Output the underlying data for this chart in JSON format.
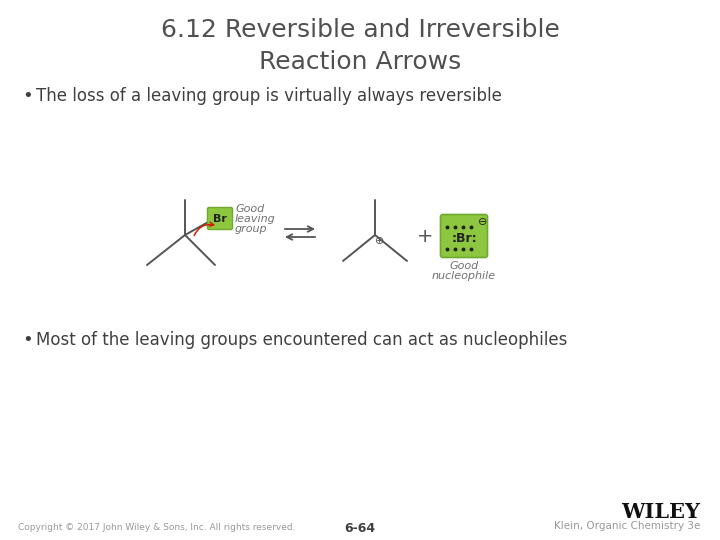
{
  "title_line1": "6.12 Reversible and Irreversible",
  "title_line2": "Reaction Arrows",
  "bullet1": "The loss of a leaving group is virtually always reversible",
  "bullet2": "Most of the leaving groups encountered can act as nucleophiles",
  "footer_left": "Copyright © 2017 John Wiley & Sons, Inc. All rights reserved.",
  "footer_center": "6-64",
  "footer_right": "Klein, Organic Chemistry 3e",
  "footer_wiley": "WILEY",
  "bg_color": "#ffffff",
  "title_color": "#505050",
  "bullet_color": "#404040",
  "footer_color": "#999999",
  "green_box_color": "#8dc63f",
  "green_box_edge": "#70a830",
  "label_color": "#707070",
  "bond_color": "#555555",
  "arrow_color": "#555555",
  "red_arrow_color": "#cc2200"
}
